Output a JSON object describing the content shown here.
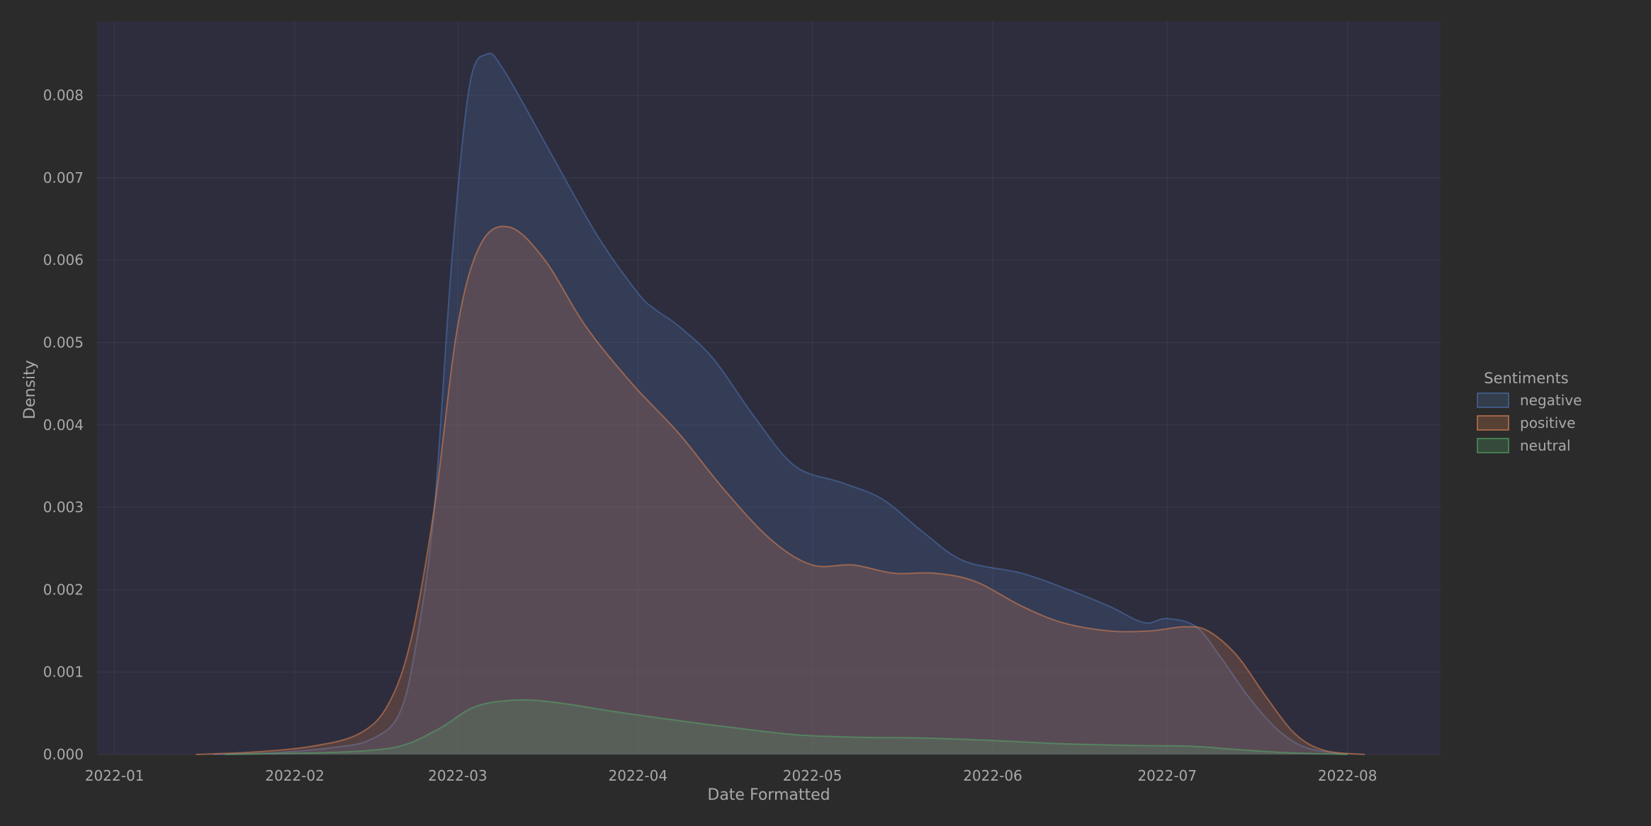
{
  "chart_data": {
    "type": "area",
    "kind": "kde density",
    "title": "",
    "xlabel": "Date Formatted",
    "ylabel": "Density",
    "x_ticks": [
      "2022-01",
      "2022-02",
      "2022-03",
      "2022-04",
      "2022-05",
      "2022-06",
      "2022-07",
      "2022-08"
    ],
    "y_ticks": [
      "0.000",
      "0.001",
      "0.002",
      "0.003",
      "0.004",
      "0.005",
      "0.006",
      "0.007",
      "0.008"
    ],
    "xlim": [
      "2021-12-29",
      "2022-08-17"
    ],
    "ylim": [
      0,
      0.0089
    ],
    "grid": true,
    "legend": {
      "title": "Sentiments",
      "placement": "right"
    },
    "series": [
      {
        "name": "negative",
        "color": "#4c72b0",
        "points": [
          [
            "2022-01-18",
            0.0
          ],
          [
            "2022-01-28",
            2e-05
          ],
          [
            "2022-02-07",
            8e-05
          ],
          [
            "2022-02-14",
            0.00018
          ],
          [
            "2022-02-19",
            0.0005
          ],
          [
            "2022-02-22",
            0.0014
          ],
          [
            "2022-02-25",
            0.003
          ],
          [
            "2022-02-28",
            0.006
          ],
          [
            "2022-03-03",
            0.0081
          ],
          [
            "2022-03-06",
            0.0085
          ],
          [
            "2022-03-09",
            0.0083
          ],
          [
            "2022-03-17",
            0.0073
          ],
          [
            "2022-03-25",
            0.0063
          ],
          [
            "2022-04-01",
            0.0056
          ],
          [
            "2022-04-04",
            0.0054
          ],
          [
            "2022-04-08",
            0.0052
          ],
          [
            "2022-04-14",
            0.0048
          ],
          [
            "2022-04-21",
            0.0041
          ],
          [
            "2022-04-28",
            0.0035
          ],
          [
            "2022-05-06",
            0.0033
          ],
          [
            "2022-05-13",
            0.0031
          ],
          [
            "2022-05-20",
            0.0027
          ],
          [
            "2022-05-27",
            0.00235
          ],
          [
            "2022-06-06",
            0.0022
          ],
          [
            "2022-06-14",
            0.002
          ],
          [
            "2022-06-21",
            0.0018
          ],
          [
            "2022-06-27",
            0.0016
          ],
          [
            "2022-07-01",
            0.00165
          ],
          [
            "2022-07-06",
            0.00155
          ],
          [
            "2022-07-10",
            0.0012
          ],
          [
            "2022-07-15",
            0.0007
          ],
          [
            "2022-07-20",
            0.0003
          ],
          [
            "2022-07-25",
            8e-05
          ],
          [
            "2022-08-01",
            0.0
          ]
        ]
      },
      {
        "name": "positive",
        "color": "#dd8452",
        "points": [
          [
            "2022-01-15",
            0.0
          ],
          [
            "2022-01-25",
            3e-05
          ],
          [
            "2022-02-04",
            0.0001
          ],
          [
            "2022-02-12",
            0.00025
          ],
          [
            "2022-02-17",
            0.0006
          ],
          [
            "2022-02-21",
            0.0014
          ],
          [
            "2022-02-25",
            0.003
          ],
          [
            "2022-03-01",
            0.0052
          ],
          [
            "2022-03-05",
            0.0062
          ],
          [
            "2022-03-10",
            0.0064
          ],
          [
            "2022-03-16",
            0.006
          ],
          [
            "2022-03-23",
            0.0052
          ],
          [
            "2022-03-31",
            0.0045
          ],
          [
            "2022-04-08",
            0.0039
          ],
          [
            "2022-04-16",
            0.0032
          ],
          [
            "2022-04-24",
            0.0026
          ],
          [
            "2022-05-01",
            0.0023
          ],
          [
            "2022-05-08",
            0.0023
          ],
          [
            "2022-05-15",
            0.0022
          ],
          [
            "2022-05-22",
            0.0022
          ],
          [
            "2022-05-29",
            0.0021
          ],
          [
            "2022-06-06",
            0.0018
          ],
          [
            "2022-06-13",
            0.0016
          ],
          [
            "2022-06-21",
            0.0015
          ],
          [
            "2022-06-28",
            0.0015
          ],
          [
            "2022-07-04",
            0.00155
          ],
          [
            "2022-07-08",
            0.0015
          ],
          [
            "2022-07-13",
            0.0012
          ],
          [
            "2022-07-18",
            0.0007
          ],
          [
            "2022-07-23",
            0.00025
          ],
          [
            "2022-07-28",
            5e-05
          ],
          [
            "2022-08-04",
            0.0
          ]
        ]
      },
      {
        "name": "neutral",
        "color": "#55a868",
        "points": [
          [
            "2022-01-20",
            0.0
          ],
          [
            "2022-02-05",
            2e-05
          ],
          [
            "2022-02-14",
            5e-05
          ],
          [
            "2022-02-20",
            0.00012
          ],
          [
            "2022-02-26",
            0.00032
          ],
          [
            "2022-03-04",
            0.00058
          ],
          [
            "2022-03-11",
            0.00066
          ],
          [
            "2022-03-18",
            0.00063
          ],
          [
            "2022-03-28",
            0.00052
          ],
          [
            "2022-04-07",
            0.00042
          ],
          [
            "2022-04-18",
            0.00032
          ],
          [
            "2022-04-28",
            0.00024
          ],
          [
            "2022-05-08",
            0.00021
          ],
          [
            "2022-05-20",
            0.0002
          ],
          [
            "2022-06-01",
            0.00017
          ],
          [
            "2022-06-13",
            0.00013
          ],
          [
            "2022-06-25",
            0.00011
          ],
          [
            "2022-07-05",
            0.0001
          ],
          [
            "2022-07-13",
            6e-05
          ],
          [
            "2022-07-22",
            2e-05
          ],
          [
            "2022-08-01",
            0.0
          ]
        ]
      }
    ]
  }
}
